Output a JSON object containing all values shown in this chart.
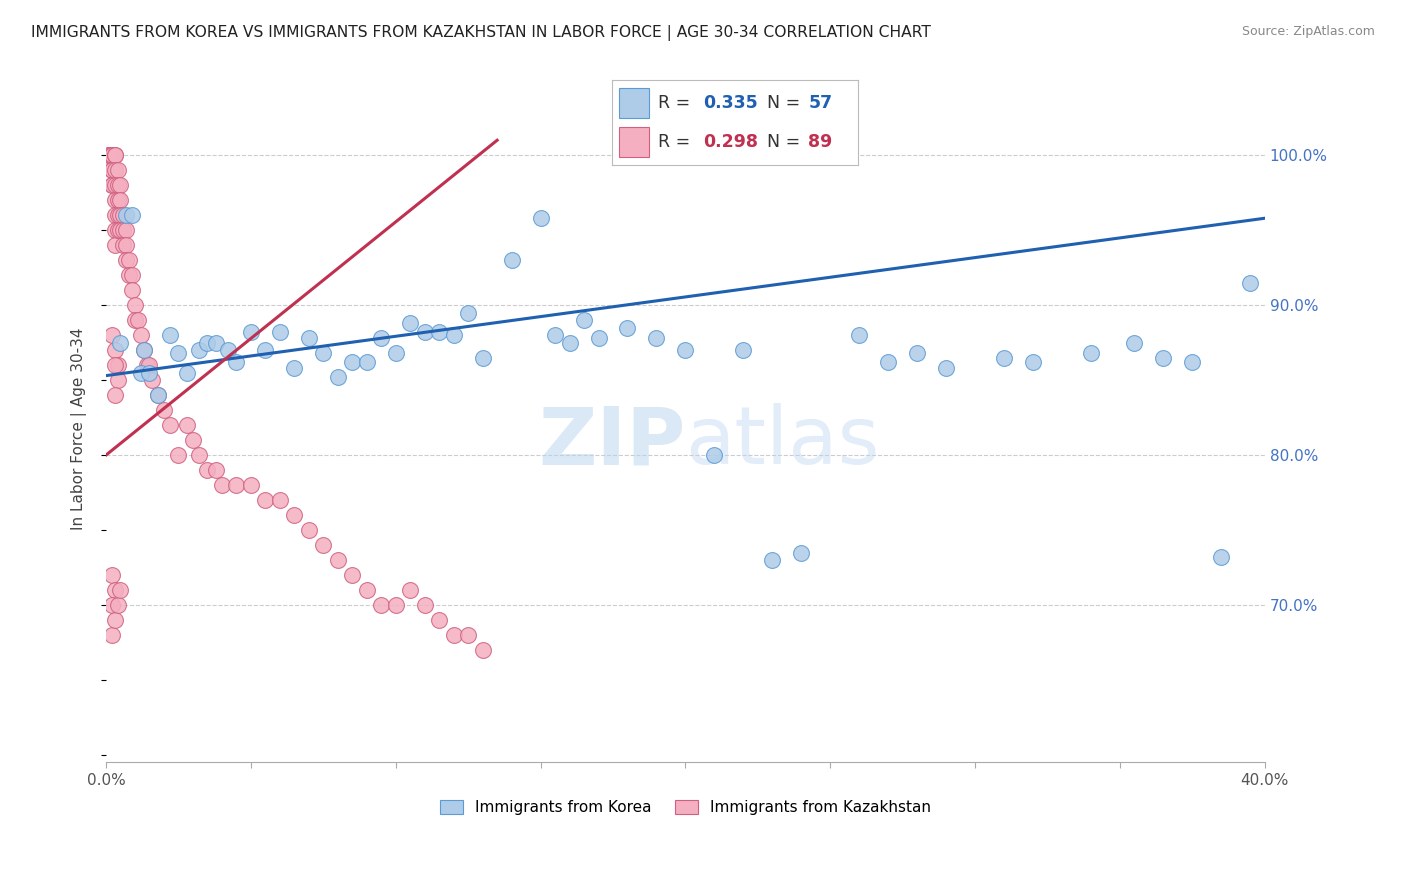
{
  "title": "IMMIGRANTS FROM KOREA VS IMMIGRANTS FROM KAZAKHSTAN IN LABOR FORCE | AGE 30-34 CORRELATION CHART",
  "source": "Source: ZipAtlas.com",
  "ylabel": "In Labor Force | Age 30-34",
  "xlim": [
    0.0,
    0.4
  ],
  "ylim": [
    0.595,
    1.04
  ],
  "korea_color": "#aecce8",
  "kazakhstan_color": "#f4afc0",
  "korea_edge": "#5b9bd5",
  "kazakhstan_edge": "#d06080",
  "trend_korea_color": "#2060b0",
  "trend_kazakhstan_color": "#c03050",
  "background_color": "#ffffff",
  "grid_color": "#cccccc",
  "korea_trend_x0": 0.0,
  "korea_trend_x1": 0.4,
  "korea_trend_y0": 0.853,
  "korea_trend_y1": 0.958,
  "kaz_trend_x0": 0.0,
  "kaz_trend_x1": 0.135,
  "kaz_trend_y0": 0.8,
  "kaz_trend_y1": 1.01,
  "korea_x": [
    0.005,
    0.007,
    0.009,
    0.012,
    0.013,
    0.015,
    0.018,
    0.022,
    0.025,
    0.028,
    0.032,
    0.035,
    0.038,
    0.042,
    0.045,
    0.05,
    0.055,
    0.06,
    0.065,
    0.07,
    0.075,
    0.08,
    0.085,
    0.09,
    0.095,
    0.1,
    0.105,
    0.11,
    0.115,
    0.12,
    0.125,
    0.13,
    0.14,
    0.15,
    0.155,
    0.16,
    0.165,
    0.17,
    0.18,
    0.19,
    0.2,
    0.21,
    0.22,
    0.23,
    0.24,
    0.26,
    0.27,
    0.28,
    0.29,
    0.31,
    0.32,
    0.34,
    0.355,
    0.365,
    0.375,
    0.385,
    0.395
  ],
  "korea_y": [
    0.875,
    0.96,
    0.96,
    0.855,
    0.87,
    0.855,
    0.84,
    0.88,
    0.868,
    0.855,
    0.87,
    0.875,
    0.875,
    0.87,
    0.862,
    0.882,
    0.87,
    0.882,
    0.858,
    0.878,
    0.868,
    0.852,
    0.862,
    0.862,
    0.878,
    0.868,
    0.888,
    0.882,
    0.882,
    0.88,
    0.895,
    0.865,
    0.93,
    0.958,
    0.88,
    0.875,
    0.89,
    0.878,
    0.885,
    0.878,
    0.87,
    0.8,
    0.87,
    0.73,
    0.735,
    0.88,
    0.862,
    0.868,
    0.858,
    0.865,
    0.862,
    0.868,
    0.875,
    0.865,
    0.862,
    0.732,
    0.915
  ],
  "kazakhstan_x": [
    0.001,
    0.001,
    0.001,
    0.002,
    0.002,
    0.002,
    0.002,
    0.002,
    0.002,
    0.002,
    0.003,
    0.003,
    0.003,
    0.003,
    0.003,
    0.003,
    0.003,
    0.003,
    0.004,
    0.004,
    0.004,
    0.004,
    0.004,
    0.005,
    0.005,
    0.005,
    0.005,
    0.006,
    0.006,
    0.006,
    0.007,
    0.007,
    0.007,
    0.008,
    0.008,
    0.009,
    0.009,
    0.01,
    0.01,
    0.011,
    0.012,
    0.013,
    0.014,
    0.015,
    0.016,
    0.018,
    0.02,
    0.022,
    0.025,
    0.028,
    0.03,
    0.032,
    0.035,
    0.038,
    0.04,
    0.045,
    0.05,
    0.055,
    0.06,
    0.065,
    0.07,
    0.075,
    0.08,
    0.085,
    0.09,
    0.095,
    0.1,
    0.105,
    0.11,
    0.115,
    0.12,
    0.125,
    0.13,
    0.002,
    0.003,
    0.004,
    0.003,
    0.004,
    0.003,
    0.002,
    0.003,
    0.002,
    0.002,
    0.003,
    0.004,
    0.005
  ],
  "kazakhstan_y": [
    1.0,
    1.0,
    1.0,
    1.0,
    1.0,
    1.0,
    0.99,
    0.99,
    0.98,
    0.98,
    1.0,
    1.0,
    0.99,
    0.98,
    0.97,
    0.96,
    0.95,
    0.94,
    0.99,
    0.98,
    0.97,
    0.96,
    0.95,
    0.98,
    0.97,
    0.96,
    0.95,
    0.96,
    0.95,
    0.94,
    0.95,
    0.94,
    0.93,
    0.93,
    0.92,
    0.92,
    0.91,
    0.9,
    0.89,
    0.89,
    0.88,
    0.87,
    0.86,
    0.86,
    0.85,
    0.84,
    0.83,
    0.82,
    0.8,
    0.82,
    0.81,
    0.8,
    0.79,
    0.79,
    0.78,
    0.78,
    0.78,
    0.77,
    0.77,
    0.76,
    0.75,
    0.74,
    0.73,
    0.72,
    0.71,
    0.7,
    0.7,
    0.71,
    0.7,
    0.69,
    0.68,
    0.68,
    0.67,
    0.88,
    0.87,
    0.86,
    0.86,
    0.85,
    0.84,
    0.72,
    0.71,
    0.7,
    0.68,
    0.69,
    0.7,
    0.71
  ]
}
